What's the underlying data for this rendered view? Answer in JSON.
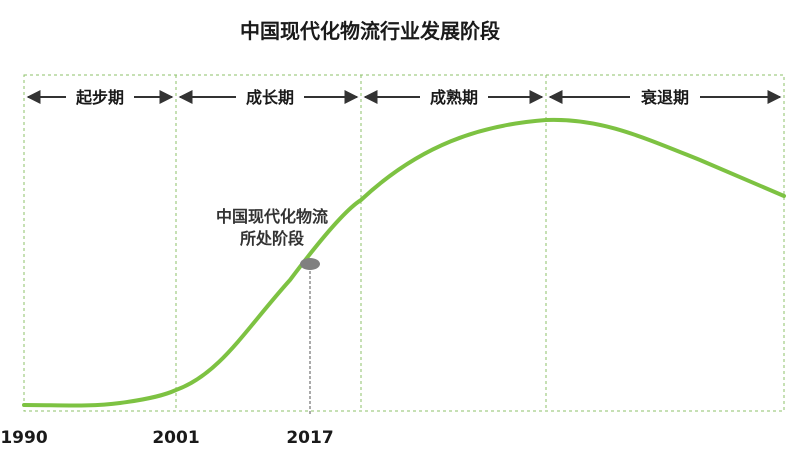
{
  "title": "中国现代化物流行业发展阶段",
  "stages": [
    {
      "label": "起步期"
    },
    {
      "label": "成长期"
    },
    {
      "label": "成熟期"
    },
    {
      "label": "衰退期"
    }
  ],
  "years": [
    "1990",
    "2001",
    "2017"
  ],
  "marker": {
    "line1": "中国现代化物流",
    "line2": "所处阶段"
  },
  "colors": {
    "curve": "#7dc242",
    "divider": "#8cc26a",
    "arrow": "#333333",
    "marker": "#808080"
  }
}
